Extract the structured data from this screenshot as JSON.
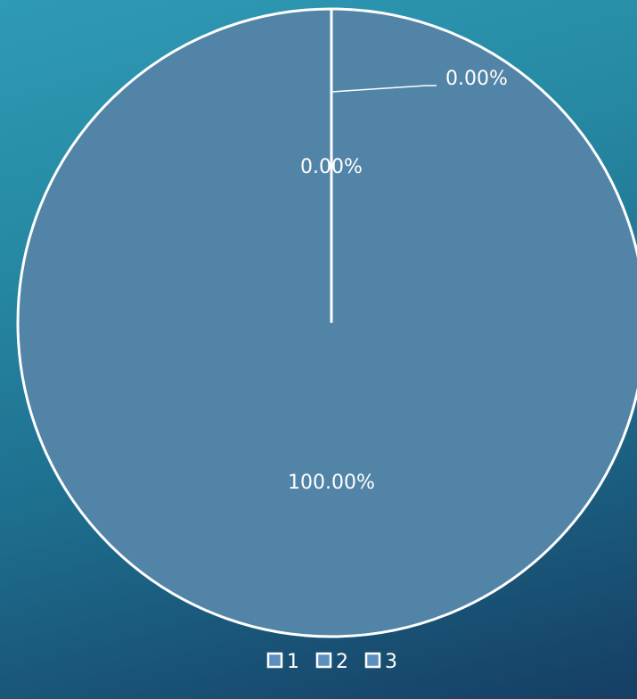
{
  "chart_data": {
    "type": "pie",
    "categories": [
      "1",
      "2",
      "3"
    ],
    "values": [
      0,
      100,
      0
    ],
    "data_labels": [
      "0.00%",
      "100.00%",
      "0.00%"
    ],
    "colors": [
      "#5284a8",
      "#5284a8",
      "#5284a8"
    ],
    "legend_swatch_colors": [
      "#5a8fbf",
      "#5a8fbf",
      "#5a8fbf"
    ],
    "legend_position": "bottom"
  }
}
